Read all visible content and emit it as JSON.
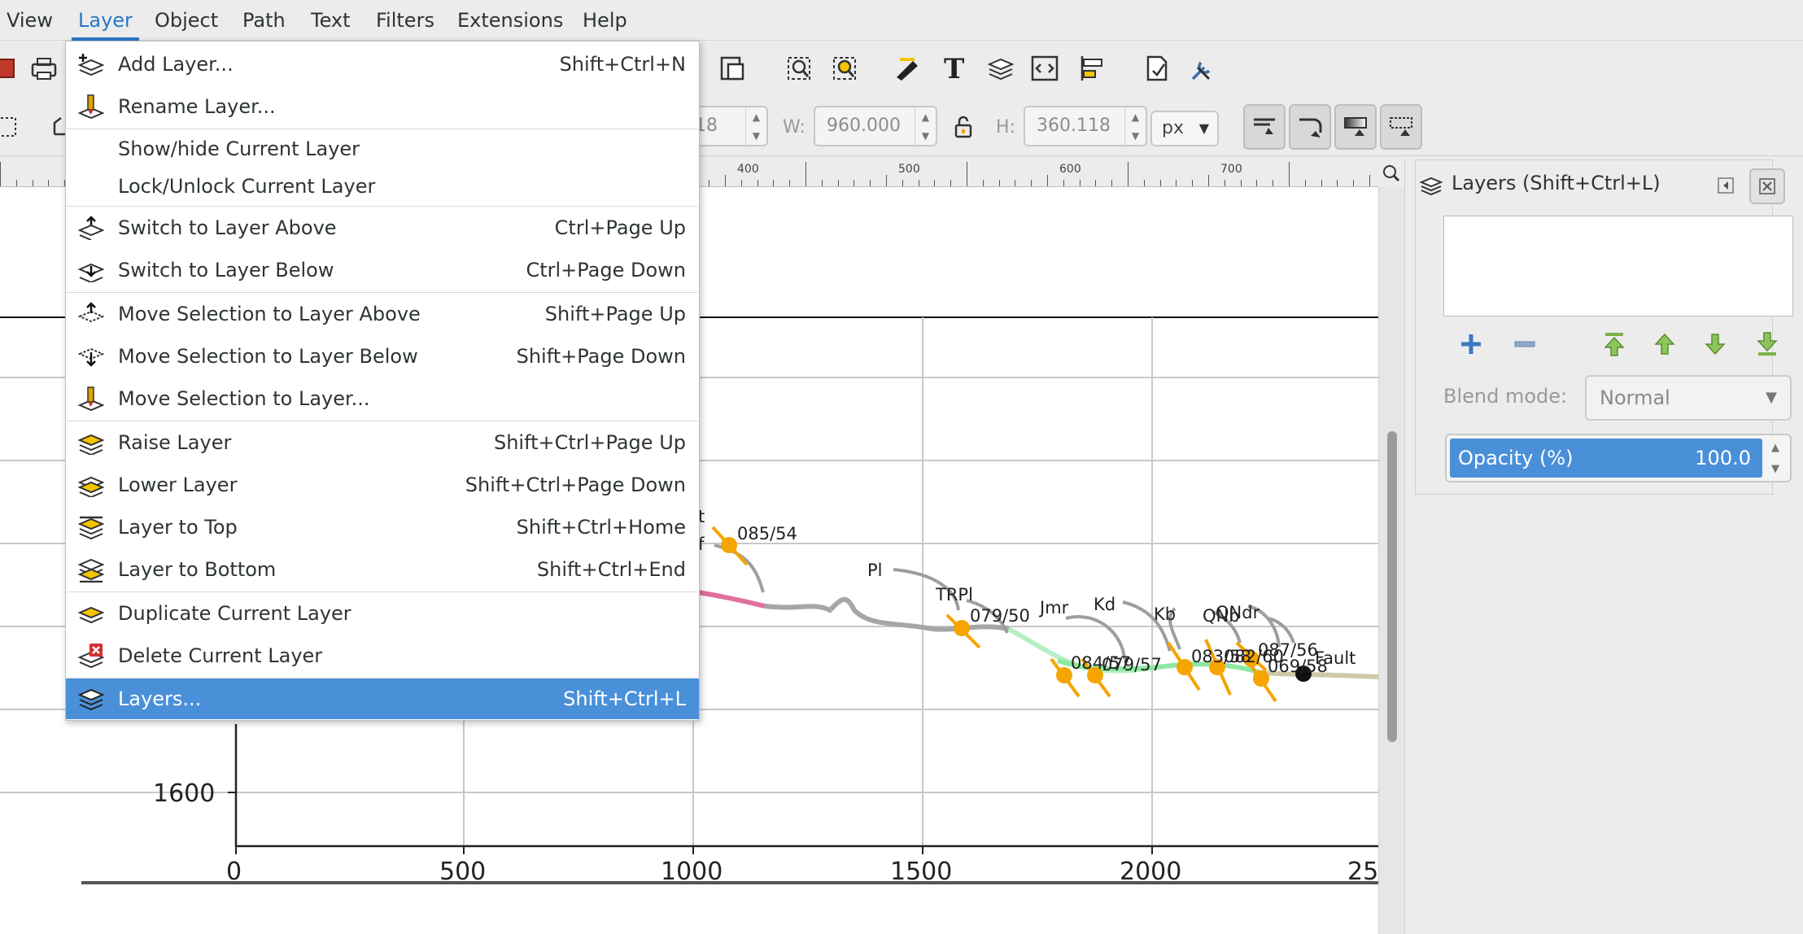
{
  "menubar": {
    "items": [
      "View",
      "Layer",
      "Object",
      "Path",
      "Text",
      "Filters",
      "Extensions",
      "Help"
    ],
    "active": "Layer"
  },
  "layer_menu": {
    "items": [
      {
        "label": "Add Layer...",
        "shortcut": "Shift+Ctrl+N",
        "icon": "add-layer-icon"
      },
      {
        "label": "Rename Layer...",
        "shortcut": "",
        "icon": "rename-layer-icon"
      },
      {
        "label": "Show/hide Current Layer",
        "shortcut": "",
        "icon": ""
      },
      {
        "label": "Lock/Unlock Current Layer",
        "shortcut": "",
        "icon": ""
      },
      {
        "label": "Switch to Layer Above",
        "shortcut": "Ctrl+Page Up",
        "icon": "switch-layer-above-icon"
      },
      {
        "label": "Switch to Layer Below",
        "shortcut": "Ctrl+Page Down",
        "icon": "switch-layer-below-icon"
      },
      {
        "label": "Move Selection to Layer Above",
        "shortcut": "Shift+Page Up",
        "icon": "move-selection-above-icon"
      },
      {
        "label": "Move Selection to Layer Below",
        "shortcut": "Shift+Page Down",
        "icon": "move-selection-below-icon"
      },
      {
        "label": "Move Selection to Layer...",
        "shortcut": "",
        "icon": "move-selection-to-layer-icon"
      },
      {
        "label": "Raise Layer",
        "shortcut": "Shift+Ctrl+Page Up",
        "icon": "raise-layer-icon"
      },
      {
        "label": "Lower Layer",
        "shortcut": "Shift+Ctrl+Page Down",
        "icon": "lower-layer-icon"
      },
      {
        "label": "Layer to Top",
        "shortcut": "Shift+Ctrl+Home",
        "icon": "layer-to-top-icon"
      },
      {
        "label": "Layer to Bottom",
        "shortcut": "Shift+Ctrl+End",
        "icon": "layer-to-bottom-icon"
      },
      {
        "label": "Duplicate Current Layer",
        "shortcut": "",
        "icon": "duplicate-layer-icon"
      },
      {
        "label": "Delete Current Layer",
        "shortcut": "",
        "icon": "delete-layer-icon"
      },
      {
        "label": "Layers...",
        "shortcut": "Shift+Ctrl+L",
        "icon": "layers-icon"
      }
    ],
    "selected": "Layers..."
  },
  "toolbar": {
    "x_partial": "18",
    "w_label": "W:",
    "w_value": "960.000",
    "h_label": "H:",
    "h_value": "360.118",
    "unit": "px"
  },
  "ruler": {
    "labels": [
      "400",
      "500",
      "600",
      "700"
    ]
  },
  "layers_panel": {
    "title": "Layers (Shift+Ctrl+L)",
    "blend_label": "Blend mode:",
    "blend_value": "Normal",
    "opacity_label": "Opacity (%)",
    "opacity_value": "100.0"
  },
  "drawing": {
    "y_tick": "1600",
    "x_ticks": [
      "0",
      "500",
      "1000",
      "1500",
      "2000",
      "25"
    ],
    "labels": {
      "t": "t",
      "f": "f",
      "m1": "085/54",
      "pl": "Pl",
      "trpl": "TRPl",
      "m2": "079/50",
      "jmr": "Jmr",
      "kd": "Kd",
      "kb": "Kb",
      "m3": "084/57",
      "m4": "079/57",
      "qnb": "QNb",
      "qndr": "QNdr",
      "m5": "083/58",
      "m6": "082/60",
      "m7": "087/56",
      "m8": "069/58",
      "fault": "Fault"
    }
  },
  "colors": {
    "accent": "#4a90d9",
    "orange_marker": "#f5a400",
    "pink_segment": "#e0709c",
    "gray_segment": "#a6a6a6",
    "green_segment": "#8ee8a0",
    "tan_segment": "#cfc9a6"
  }
}
